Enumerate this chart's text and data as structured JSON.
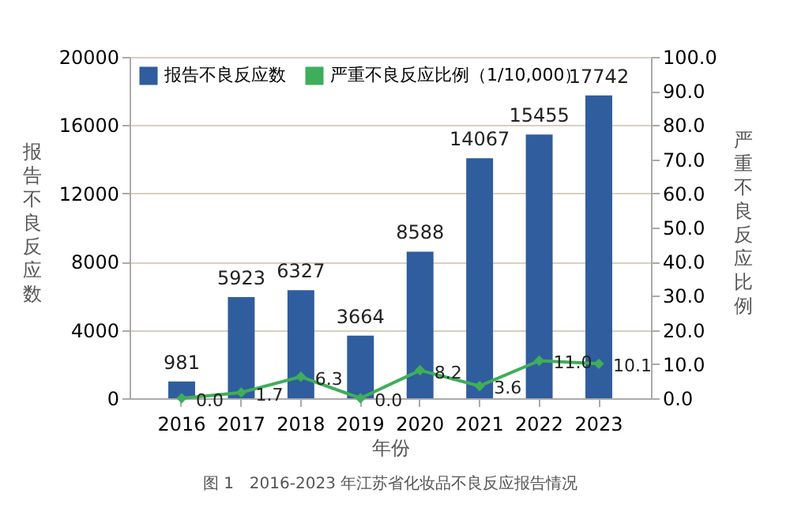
{
  "chart_data": {
    "type": "bar",
    "xlabel": "年份",
    "ylabel": "报告不良反应数",
    "y2label": "严重不良反应比例",
    "annotations": [
      "图 1　2016-2023 年江苏省化妆品不良反应报告情况"
    ],
    "categories": [
      "2016",
      "2017",
      "2018",
      "2019",
      "2020",
      "2021",
      "2022",
      "2023"
    ],
    "series": [
      {
        "name": "报告不良反应数",
        "color": "#2f5d9e",
        "values": [
          981,
          5923,
          6327,
          3664,
          8588,
          14067,
          15455,
          17742
        ]
      },
      {
        "name": "严重不良反应比例（1/10,000）",
        "type": "line",
        "axis": "y2",
        "color": "#3fae5a",
        "values": [
          0.0,
          1.7,
          6.3,
          0.0,
          8.2,
          3.6,
          11.0,
          10.1
        ],
        "value_labels": [
          "0.0",
          "1.7",
          "6.3",
          "0.0",
          "8.2",
          "3.6",
          "11.0",
          "10.1"
        ]
      }
    ],
    "ylim": [
      0,
      20000
    ],
    "yticks": [
      0,
      4000,
      8000,
      12000,
      16000,
      20000
    ],
    "y2lim": [
      0,
      100
    ],
    "y2ticks": [
      {
        "value": 0,
        "label": "0.0"
      },
      {
        "value": 10,
        "label": "10.0"
      },
      {
        "value": 20,
        "label": "20.0"
      },
      {
        "value": 30,
        "label": "30.0"
      },
      {
        "value": 40,
        "label": "40.0"
      },
      {
        "value": 50,
        "label": "50.0"
      },
      {
        "value": 60,
        "label": "60.0"
      },
      {
        "value": 70,
        "label": "70.0"
      },
      {
        "value": 80,
        "label": "80.0"
      },
      {
        "value": 90,
        "label": "90.0"
      },
      {
        "value": 100,
        "label": "100.0"
      }
    ],
    "grid": "y",
    "legend": "top left",
    "marker": "diamond",
    "line_style": "solid",
    "data_labels": true
  }
}
